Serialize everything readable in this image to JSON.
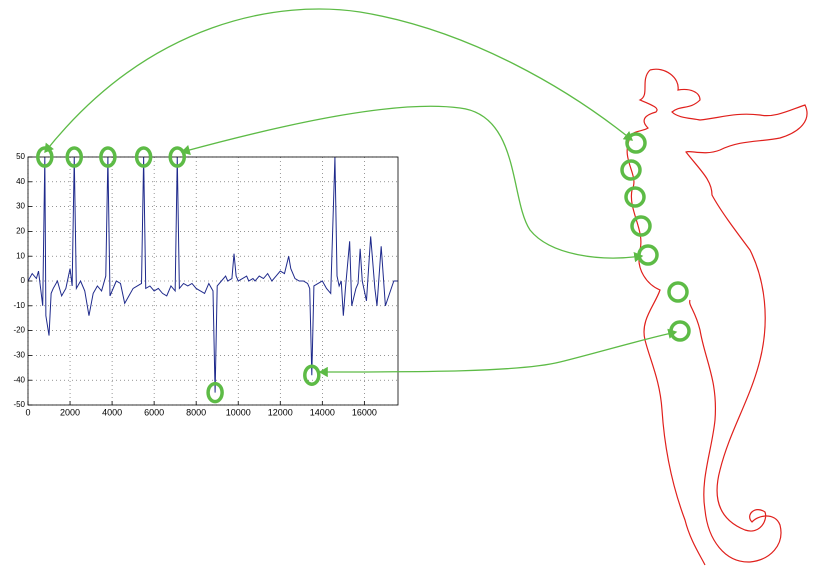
{
  "chart_data": {
    "type": "line",
    "x": [
      0,
      200,
      400,
      500,
      700,
      800,
      850,
      1000,
      1100,
      1200,
      1400,
      1600,
      1800,
      2000,
      2100,
      2200,
      2300,
      2500,
      2700,
      2900,
      3100,
      3300,
      3500,
      3700,
      3800,
      3900,
      4200,
      4400,
      4600,
      4800,
      5000,
      5200,
      5400,
      5500,
      5600,
      5800,
      6000,
      6200,
      6400,
      6600,
      6800,
      7000,
      7100,
      7200,
      7400,
      7600,
      7800,
      8000,
      8200,
      8400,
      8600,
      8800,
      8900,
      9000,
      9200,
      9400,
      9500,
      9700,
      9800,
      9900,
      10000,
      10200,
      10400,
      10500,
      10700,
      10800,
      11000,
      11200,
      11400,
      11600,
      11800,
      12000,
      12200,
      12400,
      12500,
      12700,
      12900,
      13100,
      13300,
      13400,
      13500,
      13600,
      13800,
      14000,
      14200,
      14400,
      14600,
      14700,
      14800,
      14900,
      15000,
      15100,
      15300,
      15400,
      15600,
      15700,
      15800,
      15900,
      16100,
      16300,
      16500,
      16600,
      16800,
      17000,
      17200,
      17400,
      17600
    ],
    "series": [
      {
        "color": "#1f2a8c",
        "values": [
          0,
          3,
          1,
          4,
          -10,
          50,
          -14,
          -22,
          -5,
          -3,
          0,
          -6,
          -3,
          5,
          -2,
          50,
          -3,
          0,
          -4,
          -14,
          -5,
          -2,
          -4,
          2,
          50,
          -6,
          0,
          -1,
          -9,
          -6,
          -3,
          -2,
          -1,
          50,
          -3,
          -2,
          -4,
          -3,
          -5,
          -6,
          -2,
          -4,
          50,
          -3,
          -1,
          -2,
          -1,
          -3,
          -4,
          -5,
          -1,
          -4,
          -45,
          -2,
          0,
          2,
          0,
          1,
          11,
          2,
          0,
          1,
          2,
          0,
          1,
          0,
          2,
          1,
          3,
          0,
          2,
          4,
          3,
          10,
          5,
          1,
          0,
          0,
          -1,
          -3,
          -38,
          -2,
          -1,
          0,
          -3,
          -5,
          50,
          2,
          -2,
          0,
          -14,
          -3,
          16,
          -10,
          -3,
          -1,
          13,
          0,
          -8,
          18,
          -3,
          -10,
          14,
          -10,
          -5,
          0,
          0
        ]
      }
    ],
    "xlim": [
      0,
      17600
    ],
    "ylim": [
      -50,
      50
    ],
    "xticks": [
      0,
      2000,
      4000,
      6000,
      8000,
      10000,
      12000,
      14000,
      16000
    ],
    "yticks": [
      -50,
      -40,
      -30,
      -20,
      -10,
      0,
      10,
      20,
      30,
      40,
      50
    ],
    "grid": true
  }
}
